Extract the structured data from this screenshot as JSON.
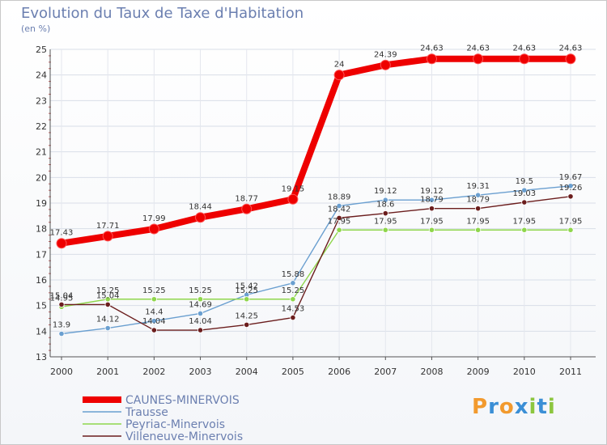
{
  "chart_data": {
    "type": "line",
    "title": "Evolution du Taux de Taxe d'Habitation",
    "ylabel": "(en %)",
    "xlabel": "",
    "categories": [
      "2000",
      "2001",
      "2002",
      "2003",
      "2004",
      "2005",
      "2006",
      "2007",
      "2008",
      "2009",
      "2010",
      "2011"
    ],
    "yticks": [
      "13",
      "14",
      "15",
      "16",
      "17",
      "18",
      "19",
      "20",
      "21",
      "22",
      "23",
      "24",
      "25"
    ],
    "ylim": [
      13,
      25
    ],
    "series": [
      {
        "name": "CAUNES-MINERVOIS",
        "color": "#ee0000",
        "values": [
          17.43,
          17.71,
          17.99,
          18.44,
          18.77,
          19.15,
          24,
          24.39,
          24.63,
          24.63,
          24.63,
          24.63
        ],
        "labels": [
          "17.43",
          "17.71",
          "17.99",
          "18.44",
          "18.77",
          "19.15",
          "24",
          "24.39",
          "24.63",
          "24.63",
          "24.63",
          "24.63"
        ]
      },
      {
        "name": "Trausse",
        "color": "#6a9fd0",
        "values": [
          13.9,
          14.12,
          14.4,
          14.69,
          15.42,
          15.88,
          18.89,
          19.12,
          19.12,
          19.31,
          19.5,
          19.67
        ],
        "labels": [
          "13.9",
          "14.12",
          "14.4",
          "14.69",
          "15.42",
          "15.88",
          "18.89",
          "19.12",
          "19.12",
          "19.31",
          "19.5",
          "19.67"
        ]
      },
      {
        "name": "Peyriac-Minervois",
        "color": "#8fd64c",
        "values": [
          14.95,
          15.25,
          15.25,
          15.25,
          15.25,
          15.25,
          17.95,
          17.95,
          17.95,
          17.95,
          17.95,
          17.95
        ],
        "labels": [
          "14.95",
          "15.25",
          "15.25",
          "15.25",
          "15.25",
          "15.25",
          "17.95",
          "17.95",
          "17.95",
          "17.95",
          "17.95",
          "17.95"
        ]
      },
      {
        "name": "Villeneuve-Minervois",
        "color": "#6b1d1d",
        "values": [
          15.04,
          15.04,
          14.04,
          14.04,
          14.25,
          14.53,
          18.42,
          18.6,
          18.79,
          18.79,
          19.03,
          19.26
        ],
        "labels": [
          "15.04",
          "15.04",
          "14.04",
          "14.04",
          "14.25",
          "14.53",
          "18.42",
          "18.6",
          "18.79",
          "18.79",
          "19.03",
          "19.26"
        ]
      }
    ]
  },
  "logo": {
    "letters": [
      "P",
      "r",
      "o",
      "x",
      "i",
      "t",
      "i"
    ],
    "colors": [
      "#f29a2e",
      "#3b8fd6",
      "#f29a2e",
      "#3b8fd6",
      "#8cc63f",
      "#3b8fd6",
      "#8cc63f"
    ]
  }
}
